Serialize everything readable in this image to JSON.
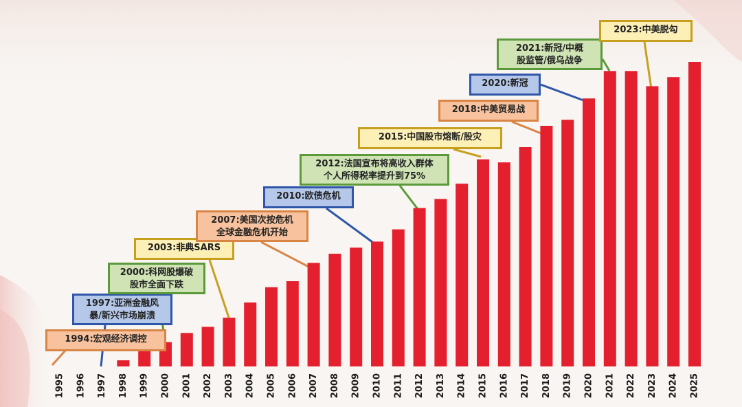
{
  "colors": {
    "bar": "#e4202e",
    "background": "#f8f5f2",
    "tick_text": "#1a1a1a"
  },
  "chart_data": {
    "type": "bar",
    "title": "",
    "xlabel": "",
    "ylabel": "",
    "grid": false,
    "ylim": [
      0,
      100
    ],
    "categories": [
      "1995",
      "1996",
      "1997",
      "1998",
      "1999",
      "2000",
      "2001",
      "2002",
      "2003",
      "2004",
      "2005",
      "2006",
      "2007",
      "2008",
      "2009",
      "2010",
      "2011",
      "2012",
      "2013",
      "2014",
      "2015",
      "2016",
      "2017",
      "2018",
      "2019",
      "2020",
      "2021",
      "2022",
      "2023",
      "2024",
      "2025"
    ],
    "values": [
      0,
      0,
      0,
      2,
      5,
      8,
      11,
      13,
      16,
      21,
      26,
      28,
      34,
      37,
      39,
      41,
      45,
      52,
      55,
      60,
      68,
      67,
      72,
      79,
      81,
      88,
      97,
      97,
      92,
      95,
      100
    ],
    "annotations": [
      {
        "id": "a1994",
        "year": "1995",
        "text_lines": [
          "1994:宏观经济调控"
        ],
        "style": "orange"
      },
      {
        "id": "a1997",
        "year": "1997",
        "text_lines": [
          "1997:亚洲金融风",
          "暴/新兴市场崩溃"
        ],
        "style": "blue"
      },
      {
        "id": "a2000",
        "year": "2000",
        "text_lines": [
          "2000:科网股爆破",
          "股市全面下跌"
        ],
        "style": "green"
      },
      {
        "id": "a2003",
        "year": "2003",
        "text_lines": [
          "2003:非典SARS"
        ],
        "style": "yellow"
      },
      {
        "id": "a2007",
        "year": "2007",
        "text_lines": [
          "2007:美国次按危机",
          "全球金融危机开始"
        ],
        "style": "orange"
      },
      {
        "id": "a2010",
        "year": "2010",
        "text_lines": [
          "2010:欧债危机"
        ],
        "style": "blue"
      },
      {
        "id": "a2012",
        "year": "2012",
        "text_lines": [
          "2012:法国宣布将高收入群体",
          "个人所得税率提升到75%"
        ],
        "style": "green"
      },
      {
        "id": "a2015",
        "year": "2015",
        "text_lines": [
          "2015:中国股市熔断/股灾"
        ],
        "style": "yellow"
      },
      {
        "id": "a2018",
        "year": "2018",
        "text_lines": [
          "2018:中美贸易战"
        ],
        "style": "orange"
      },
      {
        "id": "a2020",
        "year": "2020",
        "text_lines": [
          "2020:新冠"
        ],
        "style": "blue"
      },
      {
        "id": "a2021",
        "year": "2021",
        "text_lines": [
          "2021:新冠/中概",
          "股监管/俄乌战争"
        ],
        "style": "green"
      },
      {
        "id": "a2023",
        "year": "2023",
        "text_lines": [
          "2023:中美脱勾"
        ],
        "style": "yellow"
      }
    ],
    "annotation_styles": {
      "orange": {
        "fill": "#f7c29d",
        "border": "#d98545",
        "line": "#d98545"
      },
      "blue": {
        "fill": "#b5c8ea",
        "border": "#2f56a8",
        "line": "#2f56a8"
      },
      "green": {
        "fill": "#cfe3b5",
        "border": "#5b9a3a",
        "line": "#5b9a3a"
      },
      "yellow": {
        "fill": "#fcf0b7",
        "border": "#c79f1f",
        "line": "#c79f1f"
      }
    }
  }
}
